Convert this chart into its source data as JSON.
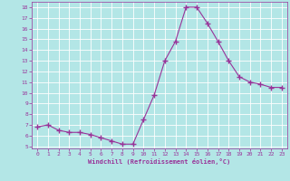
{
  "x": [
    0,
    1,
    2,
    3,
    4,
    5,
    6,
    7,
    8,
    9,
    10,
    11,
    12,
    13,
    14,
    15,
    16,
    17,
    18,
    19,
    20,
    21,
    22,
    23
  ],
  "y": [
    6.8,
    7.0,
    6.5,
    6.3,
    6.3,
    6.1,
    5.8,
    5.5,
    5.2,
    5.2,
    7.5,
    9.8,
    13.0,
    14.8,
    18.0,
    18.0,
    16.5,
    14.8,
    13.0,
    11.5,
    11.0,
    10.8,
    10.5,
    10.5
  ],
  "line_color": "#993399",
  "marker": "+",
  "marker_size": 4,
  "bg_color": "#b3e6e6",
  "grid_color": "#ffffff",
  "xlabel": "Windchill (Refroidissement éolien,°C)",
  "xlabel_color": "#993399",
  "tick_color": "#993399",
  "xlim": [
    -0.5,
    23.5
  ],
  "ylim": [
    4.8,
    18.5
  ],
  "yticks": [
    5,
    6,
    7,
    8,
    9,
    10,
    11,
    12,
    13,
    14,
    15,
    16,
    17,
    18
  ],
  "xticks": [
    0,
    1,
    2,
    3,
    4,
    5,
    6,
    7,
    8,
    9,
    10,
    11,
    12,
    13,
    14,
    15,
    16,
    17,
    18,
    19,
    20,
    21,
    22,
    23
  ]
}
